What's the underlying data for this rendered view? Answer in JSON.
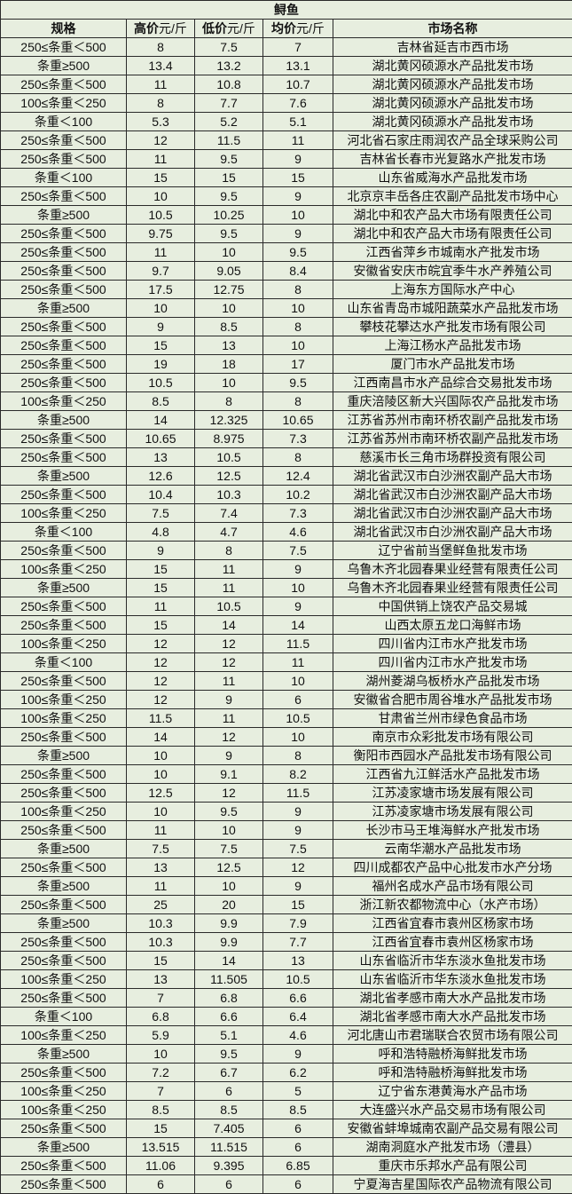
{
  "title": "鲟鱼",
  "headers": [
    {
      "bold": "规格",
      "unit": ""
    },
    {
      "bold": "高价",
      "unit": "元/斤"
    },
    {
      "bold": "低价",
      "unit": "元/斤"
    },
    {
      "bold": "均价",
      "unit": "元/斤"
    },
    {
      "bold": "市场名称",
      "unit": ""
    }
  ],
  "rows": [
    [
      "250≤条重＜500",
      "8",
      "7.5",
      "7",
      "吉林省延吉市西市场"
    ],
    [
      "条重≥500",
      "13.4",
      "13.2",
      "13.1",
      "湖北黄冈硕源水产品批发市场"
    ],
    [
      "250≤条重＜500",
      "11",
      "10.8",
      "10.7",
      "湖北黄冈硕源水产品批发市场"
    ],
    [
      "100≤条重＜250",
      "8",
      "7.7",
      "7.6",
      "湖北黄冈硕源水产品批发市场"
    ],
    [
      "条重＜100",
      "5.3",
      "5.2",
      "5.1",
      "湖北黄冈硕源水产品批发市场"
    ],
    [
      "250≤条重＜500",
      "12",
      "11.5",
      "11",
      "河北省石家庄雨润农产品全球采购公司"
    ],
    [
      "250≤条重＜500",
      "11",
      "9.5",
      "9",
      "吉林省长春市光复路水产批发市场"
    ],
    [
      "条重＜100",
      "15",
      "15",
      "15",
      "山东省威海水产品批发市场"
    ],
    [
      "250≤条重＜500",
      "10",
      "9.5",
      "9",
      "北京京丰岳各庄农副产品批发市场中心"
    ],
    [
      "条重≥500",
      "10.5",
      "10.25",
      "10",
      "湖北中和农产品大市场有限责任公司"
    ],
    [
      "250≤条重＜500",
      "9.75",
      "9.5",
      "9",
      "湖北中和农产品大市场有限责任公司"
    ],
    [
      "250≤条重＜500",
      "11",
      "10",
      "9.5",
      "江西省萍乡市城南水产批发市场"
    ],
    [
      "250≤条重＜500",
      "9.7",
      "9.05",
      "8.4",
      "安徽省安庆市皖宜季牛水产养殖公司"
    ],
    [
      "250≤条重＜500",
      "17.5",
      "12.75",
      "8",
      "上海东方国际水产中心"
    ],
    [
      "条重≥500",
      "10",
      "10",
      "10",
      "山东省青岛市城阳蔬菜水产品批发市场"
    ],
    [
      "250≤条重＜500",
      "9",
      "8.5",
      "8",
      "攀枝花攀达水产批发市场有限公司"
    ],
    [
      "250≤条重＜500",
      "15",
      "13",
      "10",
      "上海江杨水产品批发市场"
    ],
    [
      "250≤条重＜500",
      "19",
      "18",
      "17",
      "厦门市水产品批发市场"
    ],
    [
      "250≤条重＜500",
      "10.5",
      "10",
      "9.5",
      "江西南昌市水产品综合交易批发市场"
    ],
    [
      "100≤条重＜250",
      "8.5",
      "8",
      "8",
      "重庆涪陵区新大兴国际农产品批发市场"
    ],
    [
      "条重≥500",
      "14",
      "12.325",
      "10.65",
      "江苏省苏州市南环桥农副产品批发市场"
    ],
    [
      "250≤条重＜500",
      "10.65",
      "8.975",
      "7.3",
      "江苏省苏州市南环桥农副产品批发市场"
    ],
    [
      "250≤条重＜500",
      "13",
      "10.5",
      "8",
      "慈溪市长三角市场群投资有限公司"
    ],
    [
      "条重≥500",
      "12.6",
      "12.5",
      "12.4",
      "湖北省武汉市白沙洲农副产品大市场"
    ],
    [
      "250≤条重＜500",
      "10.4",
      "10.3",
      "10.2",
      "湖北省武汉市白沙洲农副产品大市场"
    ],
    [
      "100≤条重＜250",
      "7.5",
      "7.4",
      "7.3",
      "湖北省武汉市白沙洲农副产品大市场"
    ],
    [
      "条重＜100",
      "4.8",
      "4.7",
      "4.6",
      "湖北省武汉市白沙洲农副产品大市场"
    ],
    [
      "250≤条重＜500",
      "9",
      "8",
      "7.5",
      "辽宁省前当堡鲜鱼批发市场"
    ],
    [
      "100≤条重＜250",
      "15",
      "11",
      "9",
      "乌鲁木齐北园春果业经营有限责任公司"
    ],
    [
      "条重≥500",
      "15",
      "11",
      "10",
      "乌鲁木齐北园春果业经营有限责任公司"
    ],
    [
      "250≤条重＜500",
      "11",
      "10.5",
      "9",
      "中国供销上饶农产品交易城"
    ],
    [
      "250≤条重＜500",
      "15",
      "14",
      "14",
      "山西太原五龙口海鲜市场"
    ],
    [
      "100≤条重＜250",
      "12",
      "12",
      "11.5",
      "四川省内江市水产批发市场"
    ],
    [
      "条重＜100",
      "12",
      "12",
      "11",
      "四川省内江市水产批发市场"
    ],
    [
      "250≤条重＜500",
      "12",
      "11",
      "10",
      "湖州菱湖乌板桥水产品批发市场"
    ],
    [
      "100≤条重＜250",
      "12",
      "9",
      "6",
      "安徽省合肥市周谷堆水产品批发市场"
    ],
    [
      "100≤条重＜250",
      "11.5",
      "11",
      "10.5",
      "甘肃省兰州市绿色食品市场"
    ],
    [
      "250≤条重＜500",
      "14",
      "12",
      "10",
      "南京市众彩批发市场有限公司"
    ],
    [
      "条重≥500",
      "10",
      "9",
      "8",
      "衡阳市西园水产品批发市场有限公司"
    ],
    [
      "250≤条重＜500",
      "10",
      "9.1",
      "8.2",
      "江西省九江鲜活水产品批发市场"
    ],
    [
      "250≤条重＜500",
      "12.5",
      "12",
      "11.5",
      "江苏凌家塘市场发展有限公司"
    ],
    [
      "100≤条重＜250",
      "10",
      "9.5",
      "9",
      "江苏凌家塘市场发展有限公司"
    ],
    [
      "250≤条重＜500",
      "11",
      "10",
      "9",
      "长沙市马王堆海鲜水产批发市场"
    ],
    [
      "条重≥500",
      "7.5",
      "7.5",
      "7.5",
      "云南华潮水产品批发市场"
    ],
    [
      "250≤条重＜500",
      "13",
      "12.5",
      "12",
      "四川成都农产品中心批发市水产分场"
    ],
    [
      "条重≥500",
      "11",
      "10",
      "9",
      "福州名成水产品市场有限公司"
    ],
    [
      "250≤条重＜500",
      "25",
      "20",
      "15",
      "浙江新农都物流中心（水产市场）"
    ],
    [
      "条重≥500",
      "10.3",
      "9.9",
      "7.9",
      "江西省宜春市袁州区杨家市场"
    ],
    [
      "250≤条重＜500",
      "10.3",
      "9.9",
      "7.7",
      "江西省宜春市袁州区杨家市场"
    ],
    [
      "250≤条重＜500",
      "15",
      "14",
      "13",
      "山东省临沂市华东淡水鱼批发市场"
    ],
    [
      "100≤条重＜250",
      "13",
      "11.505",
      "10.5",
      "山东省临沂市华东淡水鱼批发市场"
    ],
    [
      "250≤条重＜500",
      "7",
      "6.8",
      "6.6",
      "湖北省孝感市南大水产品批发市场"
    ],
    [
      "条重＜100",
      "6.8",
      "6.6",
      "6.4",
      "湖北省孝感市南大水产品批发市场"
    ],
    [
      "100≤条重＜250",
      "5.9",
      "5.1",
      "4.6",
      "河北唐山市君瑞联合农贸市场有限公司"
    ],
    [
      "条重≥500",
      "10",
      "9.5",
      "9",
      "呼和浩特融桥海鲜批发市场"
    ],
    [
      "250≤条重＜500",
      "7.2",
      "6.7",
      "6.2",
      "呼和浩特融桥海鲜批发市场"
    ],
    [
      "100≤条重＜250",
      "7",
      "6",
      "5",
      "辽宁省东港黄海水产品市场"
    ],
    [
      "100≤条重＜250",
      "8.5",
      "8.5",
      "8.5",
      "大连盛兴水产品交易市场有限公司"
    ],
    [
      "250≤条重＜500",
      "15",
      "7.405",
      "6",
      "安徽省蚌埠城南农副产品交易有限公司"
    ],
    [
      "条重≥500",
      "13.515",
      "11.515",
      "6",
      "湖南洞庭水产批发市场（澧县）"
    ],
    [
      "250≤条重＜500",
      "11.06",
      "9.395",
      "6.85",
      "重庆市乐邦水产品有限公司"
    ],
    [
      "250≤条重＜500",
      "6",
      "6",
      "6",
      "宁夏海吉星国际农产品物流有限公司"
    ]
  ]
}
